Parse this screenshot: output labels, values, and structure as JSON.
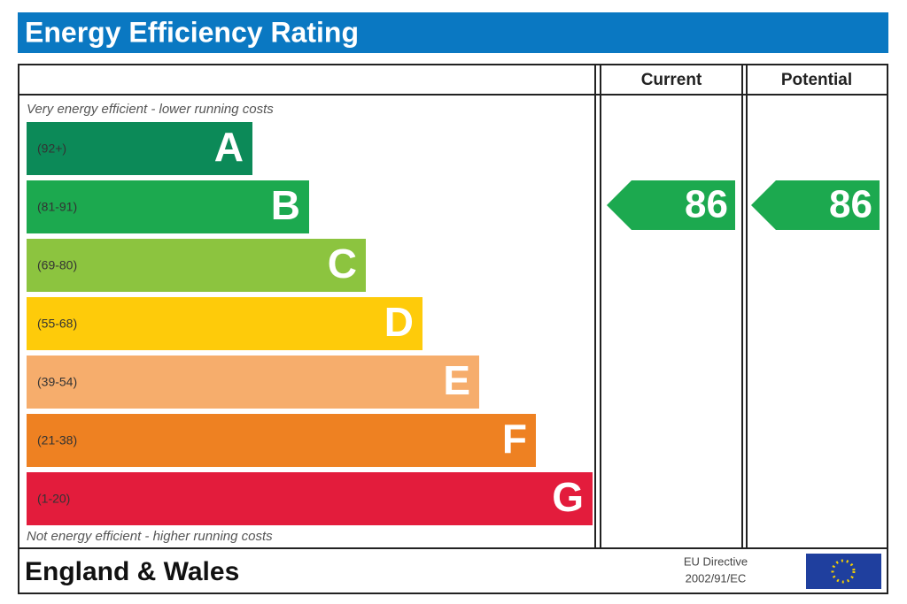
{
  "title": "Energy Efficiency Rating",
  "columns": [
    "Current",
    "Potential"
  ],
  "top_note": "Very energy efficient - lower running costs",
  "bottom_note": "Not energy efficient - higher running costs",
  "bands": [
    {
      "range": "(92+)",
      "letter": "A",
      "color": "#0c8a58"
    },
    {
      "range": "(81-91)",
      "letter": "B",
      "color": "#1ca94f"
    },
    {
      "range": "(69-80)",
      "letter": "C",
      "color": "#8cc43f"
    },
    {
      "range": "(55-68)",
      "letter": "D",
      "color": "#fecb0a"
    },
    {
      "range": "(39-54)",
      "letter": "E",
      "color": "#f6ad6c"
    },
    {
      "range": "(21-38)",
      "letter": "F",
      "color": "#ee8122"
    },
    {
      "range": "(1-20)",
      "letter": "G",
      "color": "#e31c3c"
    }
  ],
  "current": 86,
  "potential": 86,
  "footer": {
    "region": "England & Wales",
    "directive": "EU Directive",
    "directive_code": "2002/91/EC"
  }
}
